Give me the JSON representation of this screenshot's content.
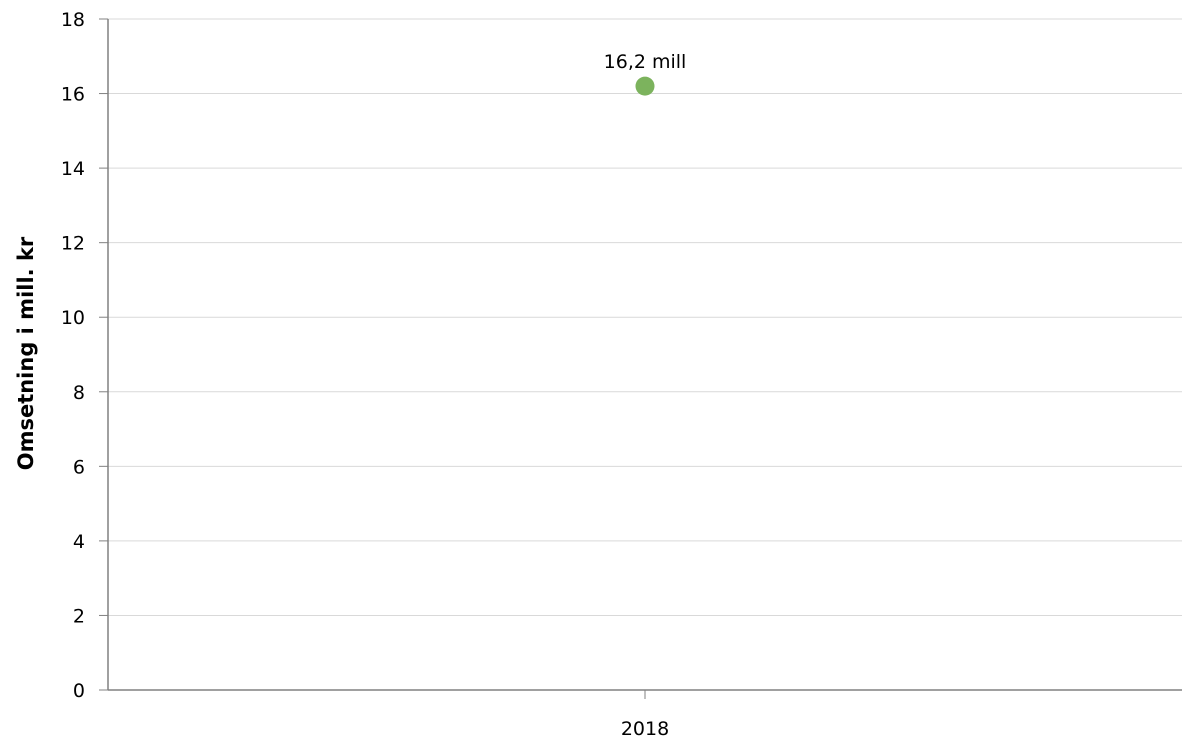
{
  "chart_data": {
    "type": "scatter",
    "title": "",
    "xlabel": "",
    "ylabel": "Omsetning i mill. kr",
    "categories": [
      "2018"
    ],
    "series": [
      {
        "values": [
          16.2
        ],
        "data_labels": [
          "16,2 mill"
        ],
        "color": "#7cb35d"
      }
    ],
    "ylim": [
      0,
      18
    ],
    "y_ticks": [
      0,
      2,
      4,
      6,
      8,
      10,
      12,
      14,
      16,
      18
    ],
    "y_tick_labels": [
      "0",
      "2",
      "4",
      "6",
      "8",
      "10",
      "12",
      "14",
      "16",
      "18"
    ],
    "grid": true,
    "legend": "none"
  }
}
